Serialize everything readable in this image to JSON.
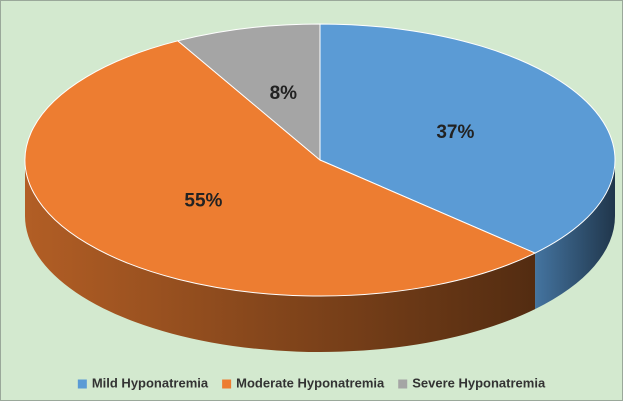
{
  "chart_data": {
    "type": "pie",
    "categories": [
      "Mild Hyponatremia",
      "Moderate Hyponatremia",
      "Severe Hyponatremia"
    ],
    "values": [
      37,
      55,
      8
    ],
    "value_labels": [
      "37%",
      "55%",
      "8%"
    ],
    "colors": [
      "#5b9bd5",
      "#ed7d31",
      "#a5a5a5"
    ],
    "legend": "bottom"
  }
}
